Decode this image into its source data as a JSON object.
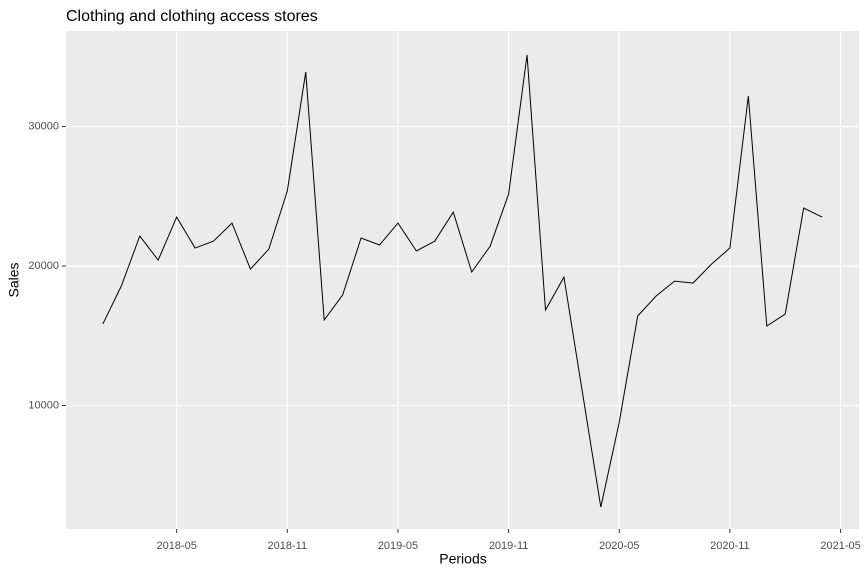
{
  "chart_data": {
    "type": "line",
    "title": "Clothing and clothing access stores",
    "x_label": "Periods",
    "y_label": "Sales",
    "x": [
      "2018-01",
      "2018-02",
      "2018-03",
      "2018-04",
      "2018-05",
      "2018-06",
      "2018-07",
      "2018-08",
      "2018-09",
      "2018-10",
      "2018-11",
      "2018-12",
      "2019-01",
      "2019-02",
      "2019-03",
      "2019-04",
      "2019-05",
      "2019-06",
      "2019-07",
      "2019-08",
      "2019-09",
      "2019-10",
      "2019-11",
      "2019-12",
      "2020-01",
      "2020-02",
      "2020-03",
      "2020-04",
      "2020-05",
      "2020-06",
      "2020-07",
      "2020-08",
      "2020-09",
      "2020-10",
      "2020-11",
      "2020-12",
      "2021-01",
      "2021-02",
      "2021-03",
      "2021-04"
    ],
    "values": [
      15850,
      18570,
      22150,
      20430,
      23510,
      21290,
      21790,
      23080,
      19780,
      21220,
      25380,
      33910,
      16130,
      17920,
      22010,
      21510,
      23080,
      21080,
      21790,
      23870,
      19570,
      21430,
      25160,
      35130,
      16850,
      19210,
      10970,
      2720,
      8810,
      16420,
      17850,
      18920,
      18780,
      20140,
      21290,
      32190,
      15700,
      16560,
      24160,
      23510
    ],
    "color": "#000000",
    "xlim": [
      "2017-11",
      "2021-06"
    ],
    "xticks": [
      "2018-05",
      "2018-11",
      "2019-05",
      "2019-11",
      "2020-05",
      "2020-11",
      "2021-05"
    ],
    "ylim": [
      1150,
      36850
    ],
    "yticks": [
      10000,
      20000,
      30000
    ],
    "grid": true
  }
}
